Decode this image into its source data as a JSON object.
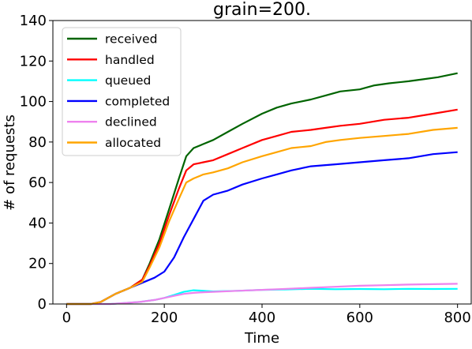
{
  "chart_data": {
    "type": "line",
    "title": "grain=200.",
    "xlabel": "Time",
    "ylabel": "# of requests",
    "xlim": [
      -28,
      828
    ],
    "ylim": [
      0,
      140
    ],
    "xticks": [
      0,
      200,
      400,
      600,
      800
    ],
    "yticks": [
      0,
      20,
      40,
      60,
      80,
      100,
      120,
      140
    ],
    "grid": false,
    "legend_position": "top-left",
    "series": [
      {
        "name": "received",
        "color": "#006400",
        "x": [
          0,
          50,
          70,
          100,
          130,
          155,
          170,
          190,
          210,
          230,
          245,
          260,
          280,
          300,
          330,
          360,
          400,
          430,
          460,
          480,
          500,
          530,
          560,
          600,
          630,
          660,
          700,
          730,
          760,
          800
        ],
        "y": [
          0,
          0,
          1,
          5,
          8,
          12,
          20,
          32,
          47,
          62,
          73,
          77,
          79,
          81,
          85,
          89,
          94,
          97,
          99,
          100,
          101,
          103,
          105,
          106,
          108,
          109,
          110,
          111,
          112,
          114
        ]
      },
      {
        "name": "handled",
        "color": "#ff0000",
        "x": [
          0,
          50,
          70,
          100,
          130,
          155,
          170,
          190,
          210,
          230,
          245,
          260,
          280,
          300,
          330,
          360,
          400,
          430,
          460,
          500,
          530,
          560,
          600,
          650,
          700,
          750,
          800
        ],
        "y": [
          0,
          0,
          1,
          5,
          8,
          12,
          19,
          30,
          44,
          57,
          66,
          69,
          70,
          71,
          74,
          77,
          81,
          83,
          85,
          86,
          87,
          88,
          89,
          91,
          92,
          94,
          96
        ]
      },
      {
        "name": "queued",
        "color": "#00ffff",
        "x": [
          0,
          90,
          120,
          150,
          180,
          200,
          220,
          240,
          260,
          280,
          300,
          350,
          400,
          450,
          500,
          550,
          600,
          650,
          700,
          750,
          800
        ],
        "y": [
          0,
          0,
          0.5,
          1,
          2,
          3,
          4.5,
          6,
          6.8,
          6.5,
          6.2,
          6.5,
          7,
          7.2,
          7.5,
          7.3,
          7.4,
          7.3,
          7.5,
          7.4,
          7.5
        ]
      },
      {
        "name": "completed",
        "color": "#0000ff",
        "x": [
          0,
          50,
          70,
          100,
          130,
          160,
          180,
          200,
          220,
          240,
          260,
          280,
          300,
          330,
          360,
          400,
          430,
          460,
          500,
          550,
          600,
          650,
          700,
          750,
          800
        ],
        "y": [
          0,
          0,
          1,
          5,
          8,
          11,
          13,
          16,
          23,
          33,
          42,
          51,
          54,
          56,
          59,
          62,
          64,
          66,
          68,
          69,
          70,
          71,
          72,
          74,
          75
        ]
      },
      {
        "name": "declined",
        "color": "#ee82ee",
        "x": [
          0,
          90,
          120,
          150,
          180,
          200,
          220,
          240,
          260,
          280,
          300,
          350,
          400,
          450,
          500,
          550,
          600,
          650,
          700,
          750,
          800
        ],
        "y": [
          0,
          0,
          0.5,
          1,
          2,
          3,
          4,
          5,
          5.5,
          5.8,
          6,
          6.5,
          7,
          7.5,
          8,
          8.5,
          9,
          9.3,
          9.6,
          9.8,
          10
        ]
      },
      {
        "name": "allocated",
        "color": "#ffa500",
        "x": [
          0,
          50,
          70,
          100,
          130,
          155,
          170,
          190,
          210,
          230,
          245,
          260,
          280,
          300,
          330,
          360,
          400,
          430,
          460,
          500,
          530,
          560,
          600,
          650,
          700,
          750,
          800
        ],
        "y": [
          0,
          0,
          1,
          5,
          8,
          11,
          18,
          28,
          41,
          52,
          60,
          62,
          64,
          65,
          67,
          70,
          73,
          75,
          77,
          78,
          80,
          81,
          82,
          83,
          84,
          86,
          87
        ]
      }
    ]
  }
}
